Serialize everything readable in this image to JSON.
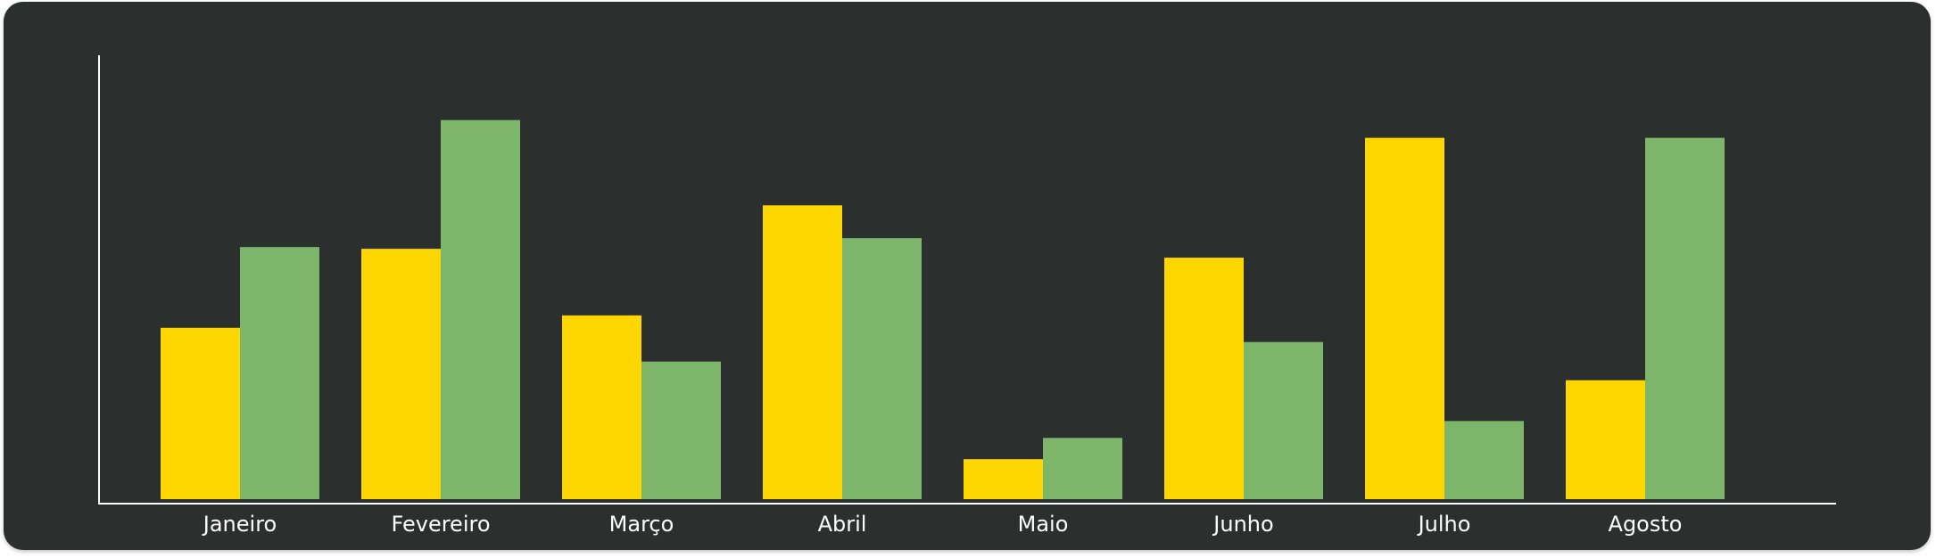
{
  "chart_data": {
    "type": "bar",
    "title": "",
    "xlabel": "",
    "ylabel": "",
    "categories": [
      "Janeiro",
      "Fevereiro",
      "Março",
      "Abril",
      "Maio",
      "Junho",
      "Julho",
      "Agosto"
    ],
    "series": [
      {
        "color": "#FFD700",
        "values": [
          193,
          282,
          207,
          331,
          45,
          272,
          407,
          134
        ]
      },
      {
        "color": "#7DB66A",
        "values": [
          284,
          427,
          155,
          294,
          69,
          177,
          88,
          407
        ]
      }
    ],
    "ylim": [
      0,
      500
    ],
    "grid": false,
    "legend": "none"
  },
  "colors": {
    "background": "#2b2f2e",
    "axis": "#ffffff",
    "label": "#ffffff"
  }
}
